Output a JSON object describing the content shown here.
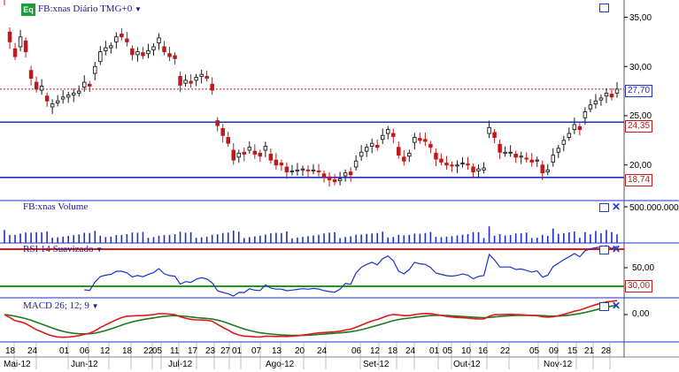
{
  "price_panel": {
    "eq_label": "Eq",
    "title": "FB:xnas Diário TMG+0",
    "y_ticks": [
      "35,00",
      "30,00",
      "25,00",
      "20,00"
    ],
    "current_badge": "27,70",
    "upper_line_badge": "24,35",
    "lower_line_badge": "18,74"
  },
  "volume_panel": {
    "title": "FB:xnas Volume",
    "y_tick": "500.000.000"
  },
  "rsi_panel": {
    "title": "RSI 14 Suavizado",
    "y_tick": "50,00",
    "level_badge": "30,00"
  },
  "macd_panel": {
    "title": "MACD 26; 12; 9",
    "y_tick": "0,00"
  },
  "colors": {
    "up": "#1a1a1a",
    "down": "#c0191c",
    "hline": "#1f2fc9",
    "dotted": "#c0191c",
    "rsi_line": "#1f2fc9",
    "rsi_upper": "#e0181b",
    "rsi_lower": "#1e9c1e",
    "macd": "#e0181b",
    "signal": "#1e7a1e"
  },
  "chart_data": [
    {
      "type": "candlestick",
      "title": "FB:xnas Diário TMG+0",
      "ylim": [
        16.5,
        38.0
      ],
      "y_ticks": [
        35,
        30,
        25,
        20
      ],
      "horizontal_lines": [
        24.35,
        18.74
      ],
      "last_price": 27.7,
      "x_day_labels": [
        "18",
        "24",
        "01",
        "06",
        "12",
        "18",
        "22",
        "05",
        "11",
        "17",
        "23",
        "27",
        "01",
        "07",
        "13",
        "20",
        "24",
        "06",
        "12",
        "18",
        "24",
        "01",
        "05",
        "10",
        "16",
        "22",
        "05",
        "09",
        "15",
        "21",
        "28"
      ],
      "x_month_labels": [
        "Mai-12",
        "Jun-12",
        "Jul-12",
        "Ago-12",
        "Set-12",
        "Out-12",
        "Nov-12"
      ],
      "closes": [
        36.8,
        32.5,
        31.0,
        33.0,
        31.5,
        28.8,
        27.7,
        28.0,
        26.5,
        26.2,
        26.5,
        26.9,
        27.1,
        27.3,
        27.5,
        28.4,
        28.0,
        30.0,
        31.5,
        31.9,
        32.1,
        33.0,
        33.0,
        32.5,
        31.2,
        31.5,
        31.1,
        31.6,
        32.0,
        32.9,
        31.5,
        31.0,
        30.8,
        28.1,
        28.6,
        28.3,
        28.9,
        29.2,
        28.8,
        27.6,
        24.0,
        23.0,
        22.2,
        20.5,
        21.2,
        21.1,
        21.8,
        21.1,
        20.9,
        21.9,
        20.5,
        20.0,
        20.0,
        19.3,
        19.4,
        19.5,
        19.6,
        19.4,
        19.5,
        19.3,
        18.8,
        18.5,
        18.3,
        18.6,
        19.2,
        19.0,
        20.4,
        21.3,
        21.8,
        22.2,
        21.8,
        23.0,
        23.6,
        22.9,
        21.0,
        20.4,
        21.2,
        22.8,
        22.5,
        22.4,
        21.8,
        20.6,
        20.3,
        20.0,
        19.9,
        20.0,
        20.2,
        20.0,
        19.3,
        19.6,
        19.7,
        23.8,
        22.8,
        21.3,
        21.3,
        21.3,
        20.8,
        20.9,
        20.6,
        20.3,
        20.5,
        19.2,
        19.5,
        21.0,
        21.7,
        22.5,
        23.2,
        24.1,
        23.6,
        25.4,
        26.1,
        26.5,
        26.8,
        27.3,
        26.9,
        27.7
      ],
      "opens": [
        37.6,
        33.5,
        31.8,
        32.0,
        32.6,
        29.6,
        28.4,
        27.6,
        27.0,
        25.9,
        26.3,
        26.7,
        26.9,
        27.1,
        27.3,
        27.9,
        28.2,
        29.3,
        30.5,
        31.6,
        31.9,
        32.5,
        33.3,
        32.8,
        31.8,
        31.2,
        31.4,
        31.3,
        31.7,
        32.4,
        32.0,
        31.3,
        31.1,
        29.0,
        28.3,
        28.5,
        28.6,
        29.0,
        29.0,
        28.2,
        24.5,
        23.7,
        22.8,
        21.5,
        20.8,
        21.3,
        21.5,
        21.4,
        21.2,
        21.5,
        21.1,
        20.5,
        20.2,
        19.8,
        19.3,
        19.4,
        19.5,
        19.5,
        19.4,
        19.4,
        19.1,
        18.8,
        18.5,
        18.4,
        18.9,
        19.3,
        19.8,
        20.9,
        21.4,
        21.9,
        22.0,
        22.6,
        23.2,
        23.2,
        21.8,
        20.8,
        20.9,
        22.3,
        22.7,
        22.6,
        22.1,
        21.2,
        20.6,
        20.2,
        20.0,
        19.9,
        20.1,
        20.1,
        19.8,
        19.4,
        19.5,
        23.2,
        23.3,
        22.1,
        21.2,
        21.3,
        21.1,
        20.8,
        20.7,
        20.5,
        20.4,
        20.0,
        19.3,
        20.3,
        21.3,
        22.1,
        22.8,
        23.6,
        23.9,
        24.8,
        25.7,
        26.2,
        26.6,
        27.0,
        27.2,
        27.3
      ],
      "volume_ylim": [
        0,
        1000000000
      ],
      "volume_tick": 500000000,
      "rsi_levels": [
        70,
        30
      ],
      "rsi_ylim": [
        0,
        100
      ],
      "macd_ylim": [
        -3.5,
        1.8
      ]
    }
  ]
}
